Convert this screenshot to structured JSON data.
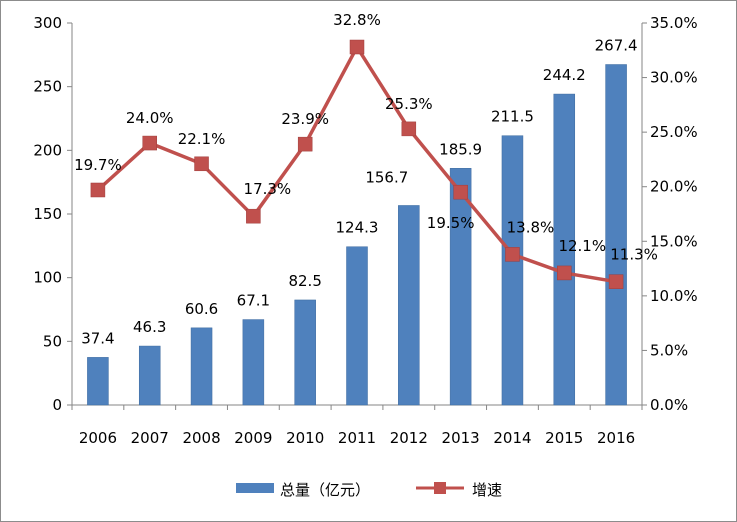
{
  "colors": {
    "bar": "#4f81bd",
    "bar_edge": "#3d6a9e",
    "line": "#c0504d",
    "axis": "#868686"
  },
  "chart_data": {
    "type": "bar",
    "categories": [
      "2006",
      "2007",
      "2008",
      "2009",
      "2010",
      "2011",
      "2012",
      "2013",
      "2014",
      "2015",
      "2016"
    ],
    "series": [
      {
        "name": "总量（亿元）",
        "type": "bar",
        "axis": "left",
        "values": [
          37.4,
          46.3,
          60.6,
          67.1,
          82.5,
          124.3,
          156.7,
          185.9,
          211.5,
          244.2,
          267.4
        ],
        "labels": [
          "37.4",
          "46.3",
          "60.6",
          "67.1",
          "82.5",
          "124.3",
          "156.7",
          "185.9",
          "211.5",
          "244.2",
          "267.4"
        ]
      },
      {
        "name": "增速",
        "type": "line",
        "axis": "right",
        "values": [
          19.7,
          24.0,
          22.1,
          17.3,
          23.9,
          32.8,
          25.3,
          19.5,
          13.8,
          12.1,
          11.3
        ],
        "labels": [
          "19.7%",
          "24.0%",
          "22.1%",
          "17.3%",
          "23.9%",
          "32.8%",
          "25.3%",
          "19.5%",
          "13.8%",
          "12.1%",
          "11.3%"
        ]
      }
    ],
    "left_axis": {
      "ylim": [
        0,
        300
      ],
      "ticks": [
        0,
        50,
        100,
        150,
        200,
        250,
        300
      ],
      "tick_labels": [
        "0",
        "50",
        "100",
        "150",
        "200",
        "250",
        "300"
      ]
    },
    "right_axis": {
      "ylim": [
        0,
        35
      ],
      "ticks": [
        0,
        5,
        10,
        15,
        20,
        25,
        30,
        35
      ],
      "tick_labels": [
        "0.0%",
        "5.0%",
        "10.0%",
        "15.0%",
        "20.0%",
        "25.0%",
        "30.0%",
        "35.0%"
      ]
    },
    "grid": false,
    "legend_position": "bottom"
  }
}
